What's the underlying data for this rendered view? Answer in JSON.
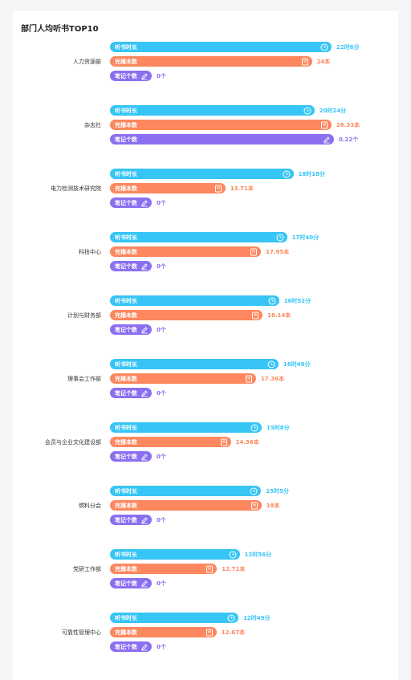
{
  "page": {
    "title": "部门人均听书TOP10"
  },
  "metrics": {
    "listen_label": "听书时长",
    "books_label": "完播本数",
    "notes_label": "笔记个数"
  },
  "colors": {
    "listen": "#36c5f5",
    "books": "#fd875e",
    "notes": "#8b6ff0"
  },
  "icons": {
    "listen": "clock-icon",
    "books": "book-icon",
    "notes": "pencil-icon"
  },
  "chart_data": {
    "type": "bar",
    "title": "部门人均听书TOP10",
    "categories": [
      "人力资源部",
      "杂志社",
      "电力检测技术研究院",
      "科技中心",
      "计划与财务部",
      "理事会工作部",
      "会员与企业文化建设部",
      "燃料分会",
      "党研工作部",
      "可靠性管理中心"
    ],
    "series": [
      {
        "name": "听书时长",
        "values_minutes": [
          1326,
          1224,
          1098,
          1060,
          1012,
          1009,
          908,
          905,
          776,
          769
        ],
        "labels": [
          "22时6分",
          "20时24分",
          "18时18分",
          "17时40分",
          "16时52分",
          "16时49分",
          "15时8分",
          "15时5分",
          "12时56分",
          "12时49分"
        ]
      },
      {
        "name": "完播本数",
        "values": [
          24,
          26.33,
          13.71,
          17.95,
          18.14,
          17.36,
          14.36,
          18,
          12.71,
          12.67
        ],
        "labels": [
          "24本",
          "26.33本",
          "13.71本",
          "17.95本",
          "18.14本",
          "17.36本",
          "14.36本",
          "18本",
          "12.71本",
          "12.67本"
        ]
      },
      {
        "name": "笔记个数",
        "values": [
          0,
          0.22,
          0,
          0,
          0,
          0,
          0,
          0,
          0,
          0
        ],
        "labels": [
          "0个",
          "0.22个",
          "0个",
          "0个",
          "0个",
          "0个",
          "0个",
          "0个",
          "0个",
          "0个"
        ]
      }
    ]
  }
}
